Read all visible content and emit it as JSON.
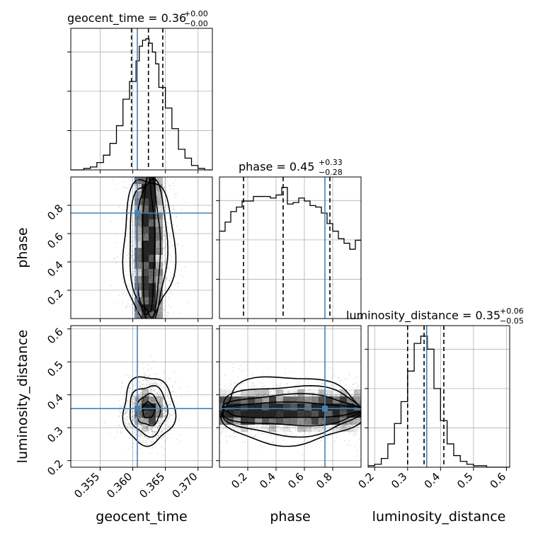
{
  "chart_data": {
    "type": "corner",
    "parameters": [
      "geocent_time",
      "phase",
      "luminosity_distance"
    ],
    "truth_color": "#4682b4",
    "truths": {
      "geocent_time": 0.3607,
      "phase": 0.745,
      "luminosity_distance": 0.358
    },
    "ranges": {
      "geocent_time": [
        0.3505,
        0.3722
      ],
      "phase": [
        0.0,
        1.0
      ],
      "luminosity_distance": [
        0.18,
        0.61
      ]
    },
    "xticks": {
      "geocent_time": [
        "0.355",
        "0.360",
        "0.365",
        "0.370"
      ],
      "phase": [
        "0.2",
        "0.4",
        "0.6",
        "0.8"
      ],
      "luminosity_distance": [
        "0.2",
        "0.3",
        "0.4",
        "0.5",
        "0.6"
      ]
    },
    "yticks": {
      "phase": [
        "0.2",
        "0.4",
        "0.6",
        "0.8"
      ],
      "luminosity_distance": [
        "0.2",
        "0.3",
        "0.4",
        "0.5",
        "0.6"
      ]
    },
    "tick_values": {
      "geocent_time": [
        0.355,
        0.36,
        0.365,
        0.37
      ],
      "phase": [
        0.2,
        0.4,
        0.6,
        0.8
      ],
      "luminosity_distance": [
        0.2,
        0.3,
        0.4,
        0.5,
        0.6
      ]
    },
    "titles": {
      "geocent_time": {
        "label": "geocent_time = 0.36",
        "plus": "+0.00",
        "minus": "−0.00"
      },
      "phase": {
        "label": "phase = 0.45",
        "plus": "+0.33",
        "minus": "−0.28"
      },
      "luminosity_distance": {
        "label": "luminosity_distance = 0.35",
        "plus": "+0.06",
        "minus": "−0.05"
      }
    },
    "axis_labels": {
      "x": [
        "geocent_time",
        "phase",
        "luminosity_distance"
      ],
      "y": [
        "phase",
        "luminosity_distance"
      ]
    },
    "quantiles": {
      "geocent_time": [
        0.3598,
        0.3624,
        0.3646
      ],
      "phase": [
        0.17,
        0.45,
        0.78
      ],
      "luminosity_distance": [
        0.3,
        0.35,
        0.41
      ]
    },
    "histograms": {
      "geocent_time": {
        "edges": [
          0.3505,
          0.3515,
          0.3525,
          0.3535,
          0.3545,
          0.3555,
          0.3565,
          0.3575,
          0.3585,
          0.3595,
          0.3605,
          0.361,
          0.3615,
          0.362,
          0.3625,
          0.363,
          0.3635,
          0.364,
          0.365,
          0.366,
          0.367,
          0.368,
          0.369,
          0.37,
          0.371,
          0.3722
        ],
        "counts": [
          0,
          0,
          1,
          2,
          5,
          10,
          18,
          30,
          48,
          60,
          74,
          84,
          88,
          89,
          86,
          80,
          72,
          56,
          42,
          28,
          14,
          8,
          3,
          1,
          0
        ]
      },
      "phase": {
        "edges": [
          0.0,
          0.04,
          0.08,
          0.12,
          0.16,
          0.2,
          0.24,
          0.28,
          0.32,
          0.36,
          0.4,
          0.44,
          0.48,
          0.52,
          0.56,
          0.6,
          0.64,
          0.68,
          0.72,
          0.76,
          0.8,
          0.84,
          0.88,
          0.92,
          0.96,
          1.0
        ],
        "counts": [
          58,
          64,
          71,
          74,
          78,
          78,
          81,
          81,
          81,
          80,
          82,
          87,
          76,
          77,
          80,
          78,
          75,
          74,
          70,
          63,
          58,
          53,
          50,
          46,
          52
        ]
      },
      "luminosity_distance": {
        "edges": [
          0.18,
          0.2,
          0.22,
          0.24,
          0.26,
          0.28,
          0.3,
          0.32,
          0.34,
          0.36,
          0.38,
          0.4,
          0.42,
          0.44,
          0.46,
          0.48,
          0.5,
          0.52,
          0.54,
          0.56,
          0.58,
          0.61
        ],
        "counts": [
          1,
          2,
          6,
          16,
          30,
          45,
          66,
          85,
          90,
          81,
          54,
          32,
          16,
          8,
          4,
          2,
          1,
          1,
          0,
          0,
          0
        ]
      }
    }
  }
}
